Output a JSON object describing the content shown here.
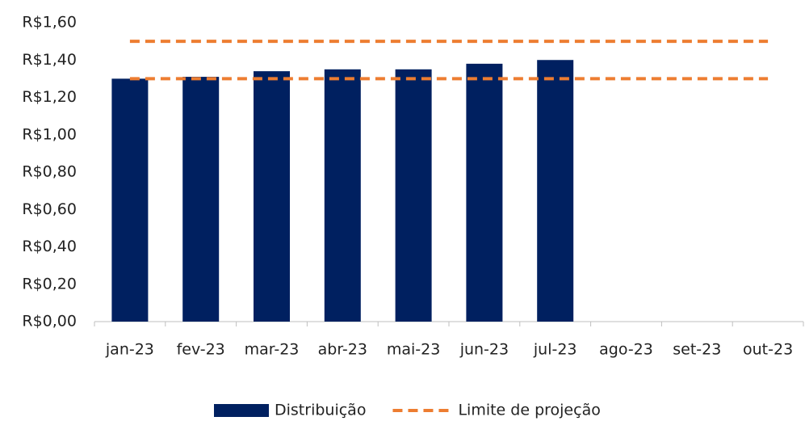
{
  "chart_data": {
    "type": "bar",
    "categories": [
      "jan-23",
      "fev-23",
      "mar-23",
      "abr-23",
      "mai-23",
      "jun-23",
      "jul-23",
      "ago-23",
      "set-23",
      "out-23"
    ],
    "series": [
      {
        "name": "Distribuição",
        "type": "bar",
        "color": "#002060",
        "values": [
          1.3,
          1.31,
          1.34,
          1.35,
          1.35,
          1.38,
          1.4,
          null,
          null,
          null
        ]
      },
      {
        "name": "Limite de projeção",
        "type": "line",
        "dashed": true,
        "color": "#ed7d31",
        "values": [
          1.5,
          1.5,
          1.5,
          1.5,
          1.5,
          1.5,
          1.5,
          1.5,
          1.5,
          1.5
        ]
      },
      {
        "type": "line",
        "dashed": true,
        "color": "#ed7d31",
        "values": [
          1.3,
          1.3,
          1.3,
          1.3,
          1.3,
          1.3,
          1.3,
          1.3,
          1.3,
          1.3
        ]
      }
    ],
    "ylim": [
      0,
      1.6
    ],
    "yticks": [
      {
        "value": 0,
        "label": "R$0,00"
      },
      {
        "value": 0.2,
        "label": "R$0,20"
      },
      {
        "value": 0.4,
        "label": "R$0,40"
      },
      {
        "value": 0.6,
        "label": "R$0,60"
      },
      {
        "value": 0.8,
        "label": "R$0,80"
      },
      {
        "value": 1.0,
        "label": "R$1,00"
      },
      {
        "value": 1.2,
        "label": "R$1,20"
      },
      {
        "value": 1.4,
        "label": "R$1,40"
      },
      {
        "value": 1.6,
        "label": "R$1,60"
      }
    ],
    "grid": false,
    "legend": "bottom"
  }
}
